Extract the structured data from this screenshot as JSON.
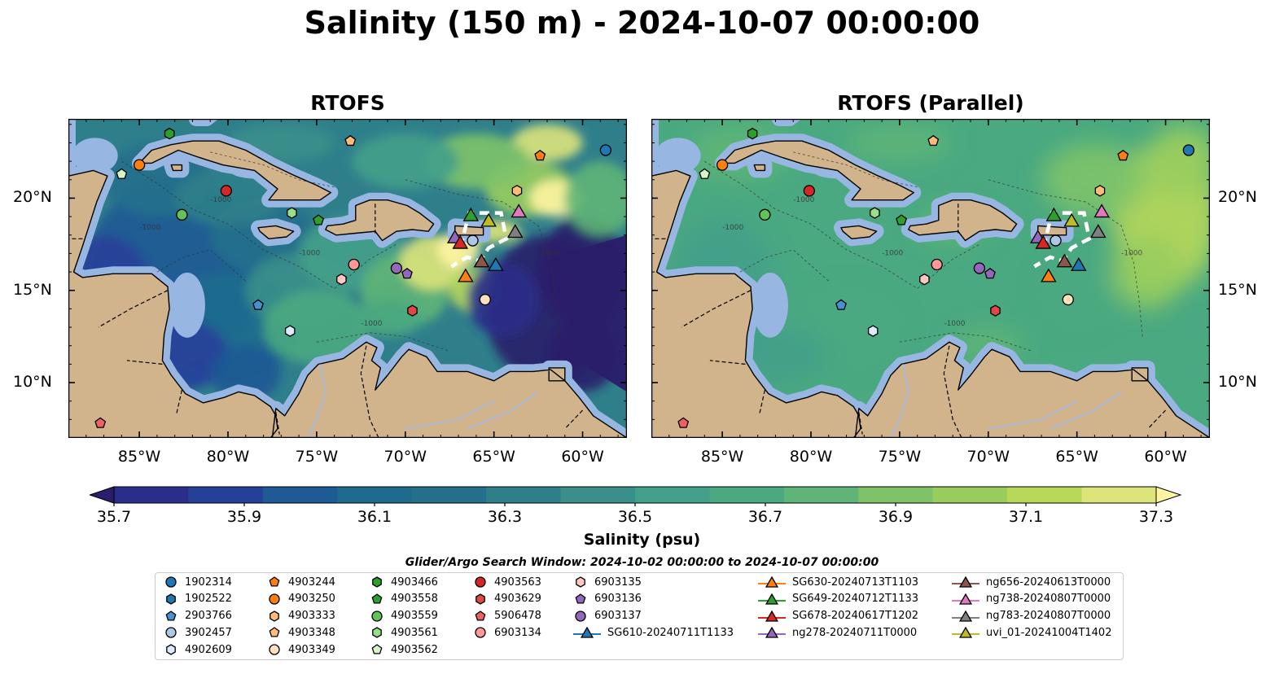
{
  "title": "Salinity (150 m) - 2024-10-07 00:00:00",
  "panels": [
    {
      "title": "RTOFS",
      "variant": "rtofs"
    },
    {
      "title": "RTOFS (Parallel)",
      "variant": "parallel"
    }
  ],
  "map": {
    "lon_range": [
      -89.0,
      -57.5
    ],
    "lat_range": [
      7.0,
      24.3
    ],
    "lon_ticks": [
      {
        "v": -85,
        "label": "85°W"
      },
      {
        "v": -80,
        "label": "80°W"
      },
      {
        "v": -75,
        "label": "75°W"
      },
      {
        "v": -70,
        "label": "70°W"
      },
      {
        "v": -65,
        "label": "65°W"
      },
      {
        "v": -60,
        "label": "60°W"
      }
    ],
    "lat_ticks": [
      {
        "v": 20,
        "label": "20°N"
      },
      {
        "v": 15,
        "label": "15°N"
      },
      {
        "v": 10,
        "label": "10°N"
      }
    ],
    "land_color": "#d2b48c",
    "shelf_color": "#97b6e1",
    "contour_label": "-1000"
  },
  "colorbar": {
    "label": "Salinity (psu)",
    "min": 35.7,
    "max": 37.3,
    "extend": "both",
    "colors": [
      "#2a1e6a",
      "#2a2e8a",
      "#26409a",
      "#1e5a94",
      "#1f6b8e",
      "#246f8c",
      "#2f7f8b",
      "#3a8f8a",
      "#43a08a",
      "#4aa981",
      "#5eb577",
      "#7ec36a",
      "#98cd5e",
      "#b8d85a",
      "#dce47a",
      "#fff5a0"
    ],
    "ticks": [
      "35.7",
      "35.9",
      "36.1",
      "36.3",
      "36.5",
      "36.7",
      "36.9",
      "37.1",
      "37.3"
    ]
  },
  "legend": {
    "title": "Glider/Argo Search Window: 2024-10-02 00:00:00 to 2024-10-07 00:00:00",
    "items": [
      {
        "label": "1902314",
        "marker": "circle",
        "color": "#1f77b4"
      },
      {
        "label": "1902522",
        "marker": "hexagon",
        "color": "#1f77b4"
      },
      {
        "label": "2903766",
        "marker": "pentagon",
        "color": "#4a90d0"
      },
      {
        "label": "3902457",
        "marker": "circle",
        "color": "#aec7e8"
      },
      {
        "label": "4902609",
        "marker": "hexagon",
        "color": "#dbeafc"
      },
      {
        "label": "4903244",
        "marker": "pentagon",
        "color": "#ff7f0e"
      },
      {
        "label": "4903250",
        "marker": "circle",
        "color": "#ff7f0e"
      },
      {
        "label": "4903333",
        "marker": "hexagon",
        "color": "#ffbb78"
      },
      {
        "label": "4903348",
        "marker": "pentagon",
        "color": "#ffbb78"
      },
      {
        "label": "4903349",
        "marker": "circle",
        "color": "#ffe0c0"
      },
      {
        "label": "4903466",
        "marker": "hexagon",
        "color": "#2ca02c"
      },
      {
        "label": "4903558",
        "marker": "pentagon",
        "color": "#2ca02c"
      },
      {
        "label": "4903559",
        "marker": "circle",
        "color": "#63c35a"
      },
      {
        "label": "4903561",
        "marker": "hexagon",
        "color": "#98df8a"
      },
      {
        "label": "4903562",
        "marker": "pentagon",
        "color": "#d4f5c8"
      },
      {
        "label": "4903563",
        "marker": "circle",
        "color": "#d62728"
      },
      {
        "label": "4903629",
        "marker": "hexagon",
        "color": "#e04848"
      },
      {
        "label": "5906478",
        "marker": "pentagon",
        "color": "#ec6262"
      },
      {
        "label": "6903134",
        "marker": "circle",
        "color": "#ff9896"
      },
      {
        "label": "6903135",
        "marker": "hexagon",
        "color": "#ffc6c4"
      },
      {
        "label": "6903136",
        "marker": "pentagon",
        "color": "#9467bd"
      },
      {
        "label": "6903137",
        "marker": "circle",
        "color": "#9467bd"
      },
      {
        "label": "SG610-20240711T1133",
        "marker": "triangle",
        "color": "#1f77b4",
        "line": true
      },
      {
        "label": "SG630-20240713T1103",
        "marker": "triangle",
        "color": "#ff7f0e",
        "line": true
      },
      {
        "label": "SG649-20240712T1133",
        "marker": "triangle",
        "color": "#2ca02c",
        "line": true
      },
      {
        "label": "SG678-20240617T1202",
        "marker": "triangle",
        "color": "#d62728",
        "line": true
      },
      {
        "label": "ng278-20240711T0000",
        "marker": "triangle",
        "color": "#9467bd",
        "line": true
      },
      {
        "label": "ng656-20240613T0000",
        "marker": "triangle",
        "color": "#8c564b",
        "line": true
      },
      {
        "label": "ng738-20240807T0000",
        "marker": "triangle",
        "color": "#e377c2",
        "line": true
      },
      {
        "label": "ng783-20240807T0000",
        "marker": "triangle",
        "color": "#7f7f7f",
        "line": true
      },
      {
        "label": "uvi_01-20241004T1402",
        "marker": "triangle",
        "color": "#bcbd22",
        "line": true
      }
    ]
  },
  "observations": [
    {
      "id": "1902314",
      "lon": -58.7,
      "lat": 22.6
    },
    {
      "id": "4903244",
      "lon": -62.4,
      "lat": 22.3
    },
    {
      "id": "4903250",
      "lon": -85.0,
      "lat": 21.8
    },
    {
      "id": "4903562",
      "lon": -86.0,
      "lat": 21.3
    },
    {
      "id": "4903466",
      "lon": -83.3,
      "lat": 23.5
    },
    {
      "id": "4903348",
      "lon": -73.1,
      "lat": 23.1
    },
    {
      "id": "4903563",
      "lon": -80.1,
      "lat": 20.4
    },
    {
      "id": "4903333",
      "lon": -63.7,
      "lat": 20.4
    },
    {
      "id": "4903559",
      "lon": -82.6,
      "lat": 19.1
    },
    {
      "id": "4903561",
      "lon": -76.4,
      "lat": 19.2
    },
    {
      "id": "4903558",
      "lon": -74.9,
      "lat": 18.8
    },
    {
      "id": "3902457",
      "lon": -66.2,
      "lat": 17.7
    },
    {
      "id": "6903134",
      "lon": -72.9,
      "lat": 16.4
    },
    {
      "id": "6903137",
      "lon": -70.5,
      "lat": 16.2
    },
    {
      "id": "6903136",
      "lon": -69.9,
      "lat": 15.9
    },
    {
      "id": "6903135",
      "lon": -73.6,
      "lat": 15.6
    },
    {
      "id": "2903766",
      "lon": -78.3,
      "lat": 14.2
    },
    {
      "id": "4903629",
      "lon": -69.6,
      "lat": 13.9
    },
    {
      "id": "4903349",
      "lon": -65.5,
      "lat": 14.5
    },
    {
      "id": "4902609",
      "lon": -76.5,
      "lat": 12.8
    },
    {
      "id": "5906478",
      "lon": -87.2,
      "lat": 7.8
    }
  ],
  "glider_positions": [
    {
      "id": "SG649-20240712T1133",
      "lon": -66.3,
      "lat": 19.0
    },
    {
      "id": "uvi_01-20241004T1402",
      "lon": -65.3,
      "lat": 18.7
    },
    {
      "id": "ng738-20240807T0000",
      "lon": -63.6,
      "lat": 19.2
    },
    {
      "id": "ng783-20240807T0000",
      "lon": -63.8,
      "lat": 18.1
    },
    {
      "id": "ng278-20240711T0000",
      "lon": -67.2,
      "lat": 17.8
    },
    {
      "id": "SG678-20240617T1202",
      "lon": -66.9,
      "lat": 17.5
    },
    {
      "id": "SG630-20240713T1103",
      "lon": -66.6,
      "lat": 15.7
    },
    {
      "id": "ng656-20240613T0000",
      "lon": -65.7,
      "lat": 16.5
    },
    {
      "id": "SG610-20240711T1133",
      "lon": -64.9,
      "lat": 16.3
    }
  ]
}
